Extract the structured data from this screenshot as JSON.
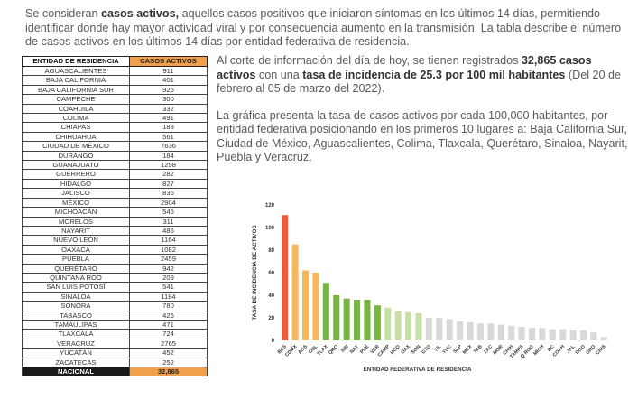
{
  "intro": {
    "pre": "Se consideran ",
    "bold": "casos activos,",
    "post": " aquellos casos positivos que iniciaron síntomas en los últimos 14 días, permitiendo identificar donde hay mayor actividad viral y por consecuencia aumento en la transmisión. La tabla describe el número de casos activos en los últimos 14 días por entidad federativa de residencia."
  },
  "table": {
    "header_entity": "ENTIDAD DE RESIDENCIA",
    "header_cases": "CASOS ACTIVOS",
    "rows": [
      {
        "entidad": "AGUASCALIENTES",
        "casos": "911"
      },
      {
        "entidad": "BAJA CALIFORNIA",
        "casos": "401"
      },
      {
        "entidad": "BAJA CALIFORNIA SUR",
        "casos": "926"
      },
      {
        "entidad": "CAMPECHE",
        "casos": "300"
      },
      {
        "entidad": "COAHUILA",
        "casos": "332"
      },
      {
        "entidad": "COLIMA",
        "casos": "491"
      },
      {
        "entidad": "CHIAPAS",
        "casos": "183"
      },
      {
        "entidad": "CHIHUAHUA",
        "casos": "561"
      },
      {
        "entidad": "CIUDAD DE MÉXICO",
        "casos": "7636"
      },
      {
        "entidad": "DURANGO",
        "casos": "184"
      },
      {
        "entidad": "GUANAJUATO",
        "casos": "1298"
      },
      {
        "entidad": "GUERRERO",
        "casos": "282"
      },
      {
        "entidad": "HIDALGO",
        "casos": "827"
      },
      {
        "entidad": "JALISCO",
        "casos": "836"
      },
      {
        "entidad": "MÉXICO",
        "casos": "2904"
      },
      {
        "entidad": "MICHOACÁN",
        "casos": "545"
      },
      {
        "entidad": "MORELOS",
        "casos": "311"
      },
      {
        "entidad": "NAYARIT",
        "casos": "486"
      },
      {
        "entidad": "NUEVO LEÓN",
        "casos": "1164"
      },
      {
        "entidad": "OAXACA",
        "casos": "1082"
      },
      {
        "entidad": "PUEBLA",
        "casos": "2459"
      },
      {
        "entidad": "QUERÉTARO",
        "casos": "942"
      },
      {
        "entidad": "QUINTANA ROO",
        "casos": "209"
      },
      {
        "entidad": "SAN LUIS POTOSÍ",
        "casos": "541"
      },
      {
        "entidad": "SINALOA",
        "casos": "1184"
      },
      {
        "entidad": "SONORA",
        "casos": "780"
      },
      {
        "entidad": "TABASCO",
        "casos": "426"
      },
      {
        "entidad": "TAMAULIPAS",
        "casos": "471"
      },
      {
        "entidad": "TLAXCALA",
        "casos": "724"
      },
      {
        "entidad": "VERACRUZ",
        "casos": "2765"
      },
      {
        "entidad": "YUCATÁN",
        "casos": "452"
      },
      {
        "entidad": "ZACATECAS",
        "casos": "252"
      }
    ],
    "total_label": "NACIONAL",
    "total_value": "32,865"
  },
  "para1": {
    "a": "Al corte de información del día de hoy, se tienen registrados ",
    "b": "32,865 casos activos",
    "c": " con una ",
    "d": "tasa de incidencia de 25.3 por 100 mil habitantes",
    "e": " (Del 20 de febrero al 05 de marzo del 2022)."
  },
  "para2": "La gráfica presenta la tasa de casos activos por cada 100,000 habitantes, por entidad federativa posicionando en los primeros 10 lugares a: Baja California Sur, Ciudad de México, Aguascalientes, Colima, Tlaxcala, Querétaro, Sinaloa, Nayarit, Puebla y Veracruz.",
  "colors": {
    "red": "#ef5b3a",
    "orange": "#f5b95a",
    "green": "#76b53f",
    "lightgreen": "#c8e0a8",
    "lightgray": "#d9d9d9"
  },
  "chart_data": {
    "type": "bar",
    "ylabel": "TASA DE INCIDENCIA DE ACTIVOS",
    "xlabel": "ENTIDAD FEDERATIVA DE RESIDENCIA",
    "ylim": [
      0,
      120
    ],
    "yticks": [
      0,
      20,
      40,
      60,
      80,
      100,
      120
    ],
    "categories": [
      "BCS",
      "CDMX",
      "AGS",
      "COL",
      "TLAX",
      "QRO",
      "SIN",
      "NAY",
      "PUE",
      "VER",
      "CAMP",
      "HGO",
      "OAX",
      "SON",
      "GTO",
      "NL",
      "YUC",
      "SLP",
      "MEX",
      "TAB",
      "ZAC",
      "MOR",
      "CHIH",
      "TAMPS",
      "Q ROO",
      "MICH",
      "BC",
      "COAH",
      "JAL",
      "DGO",
      "GRO",
      "CHIS"
    ],
    "values": [
      111,
      85,
      62,
      60,
      51,
      40,
      37,
      36,
      36,
      31,
      29,
      26,
      25,
      24,
      20,
      20,
      19,
      17,
      16,
      15,
      15,
      14,
      13,
      12,
      11,
      11,
      10,
      10,
      9,
      9,
      7,
      3
    ],
    "bar_colors": [
      "red",
      "orange",
      "orange",
      "orange",
      "green",
      "green",
      "green",
      "green",
      "green",
      "green",
      "lightgreen",
      "lightgreen",
      "lightgreen",
      "lightgreen",
      "lightgray",
      "lightgray",
      "lightgray",
      "lightgray",
      "lightgray",
      "lightgray",
      "lightgray",
      "lightgray",
      "lightgray",
      "lightgray",
      "lightgray",
      "lightgray",
      "lightgray",
      "lightgray",
      "lightgray",
      "lightgray",
      "lightgray",
      "lightgray"
    ]
  }
}
